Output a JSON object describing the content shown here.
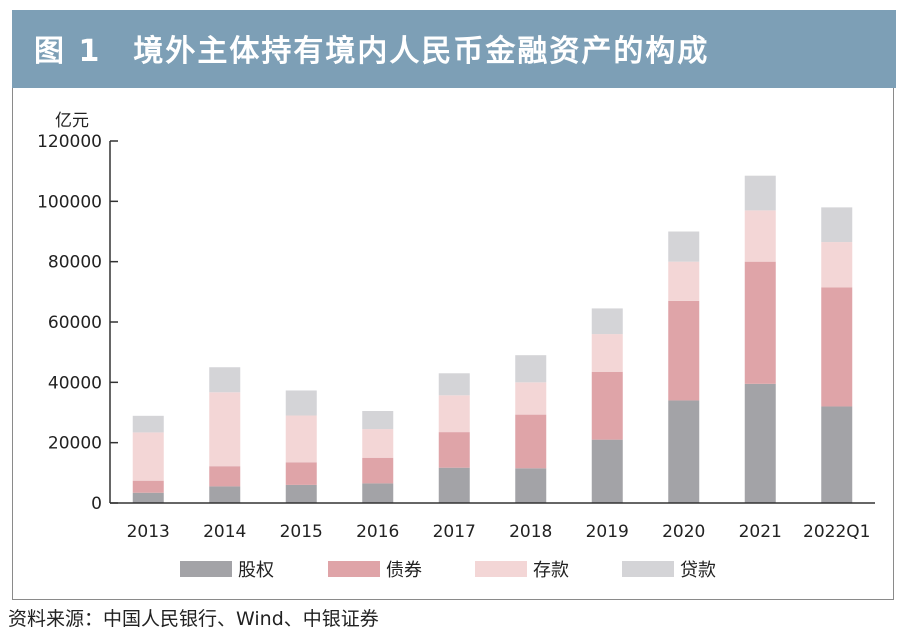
{
  "header": {
    "title": "图 1　境外主体持有境内人民币金融资产的构成"
  },
  "source": "资料来源：中国人民银行、Wind、中银证券",
  "chart_data": {
    "type": "bar",
    "stacked": true,
    "title": "境外主体持有境内人民币金融资产的构成",
    "ylabel": "亿元",
    "xlabel": "",
    "ylim": [
      0,
      120000
    ],
    "yticks": [
      0,
      20000,
      40000,
      60000,
      80000,
      100000,
      120000
    ],
    "categories": [
      "2013",
      "2014",
      "2015",
      "2016",
      "2017",
      "2018",
      "2019",
      "2020",
      "2021",
      "2022Q1"
    ],
    "legend_position": "bottom",
    "series": [
      {
        "name": "股权",
        "color": "#a3a3a7",
        "values": [
          3400,
          5500,
          6000,
          6500,
          11700,
          11500,
          21000,
          34000,
          39500,
          32000
        ]
      },
      {
        "name": "债券",
        "color": "#dfa4a8",
        "values": [
          4000,
          6700,
          7500,
          8500,
          11800,
          17800,
          22500,
          33000,
          40500,
          39500
        ]
      },
      {
        "name": "存款",
        "color": "#f3d6d6",
        "values": [
          16000,
          24500,
          15500,
          9500,
          12200,
          10700,
          12500,
          13000,
          17000,
          15000
        ]
      },
      {
        "name": "贷款",
        "color": "#d4d4d7",
        "values": [
          5500,
          8300,
          8300,
          6000,
          7300,
          9000,
          8500,
          10000,
          11500,
          11500
        ]
      }
    ]
  }
}
